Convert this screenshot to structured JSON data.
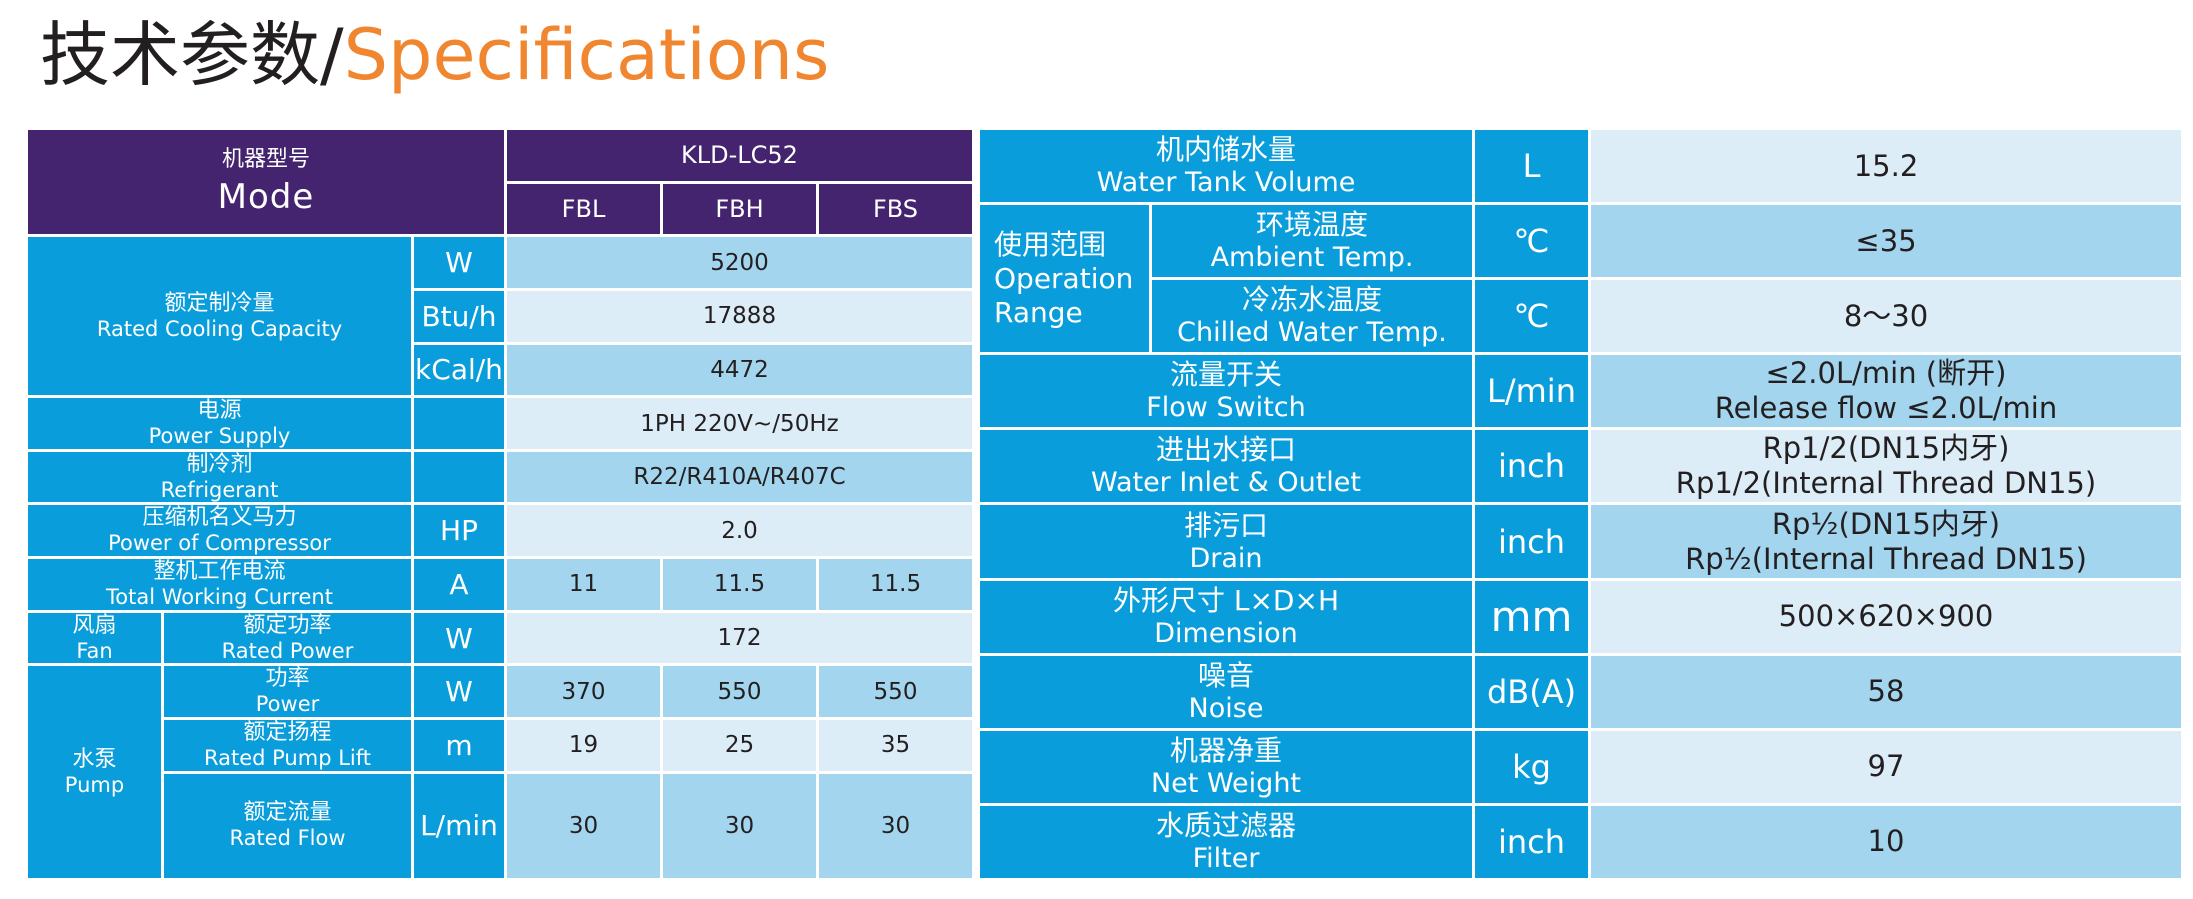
{
  "header": {
    "title_cn": "技术参数/",
    "title_en": "Specifications"
  },
  "left_table": {
    "mode_cn": "机器型号",
    "mode_en": "Mode",
    "model": "KLD-LC52",
    "variants": [
      "FBL",
      "FBH",
      "FBS"
    ],
    "cooling": {
      "cn": "额定制冷量",
      "en": "Rated Cooling Capacity",
      "rows": [
        {
          "unit": "W",
          "value": "5200"
        },
        {
          "unit": "Btu/h",
          "value": "17888"
        },
        {
          "unit": "kCal/h",
          "value": "4472"
        }
      ]
    },
    "power_supply": {
      "cn": "电源",
      "en": "Power Supply",
      "value": "1PH 220V~/50Hz"
    },
    "refrigerant": {
      "cn": "制冷剂",
      "en": "Refrigerant",
      "value": "R22/R410A/R407C"
    },
    "compressor": {
      "cn": "压缩机名义马力",
      "en": "Power of Compressor",
      "unit": "HP",
      "value": "2.0"
    },
    "current": {
      "cn": "整机工作电流",
      "en": "Total Working Current",
      "unit": "A",
      "values": [
        "11",
        "11.5",
        "11.5"
      ]
    },
    "fan": {
      "cn": "风扇",
      "en": "Fan",
      "sub_cn": "额定功率",
      "sub_en": "Rated Power",
      "unit": "W",
      "value": "172"
    },
    "pump": {
      "cn": "水泵",
      "en": "Pump",
      "rows": [
        {
          "cn": "功率",
          "en": "Power",
          "unit": "W",
          "values": [
            "370",
            "550",
            "550"
          ]
        },
        {
          "cn": "额定扬程",
          "en": "Rated Pump Lift",
          "unit": "m",
          "values": [
            "19",
            "25",
            "35"
          ]
        },
        {
          "cn": "额定流量",
          "en": "Rated Flow",
          "unit": "L/min",
          "values": [
            "30",
            "30",
            "30"
          ]
        }
      ]
    }
  },
  "right_table": {
    "tank": {
      "cn": "机内储水量",
      "en": "Water Tank Volume",
      "unit": "L",
      "value": "15.2"
    },
    "range": {
      "cn": "使用范围",
      "en1": "Operation",
      "en2": "Range",
      "ambient": {
        "cn": "环境温度",
        "en": "Ambient Temp.",
        "unit": "℃",
        "value": "≤35"
      },
      "chilled": {
        "cn": "冷冻水温度",
        "en": "Chilled Water Temp.",
        "unit": "℃",
        "value": "8～30"
      }
    },
    "flow_switch": {
      "cn": "流量开关",
      "en": "Flow Switch",
      "unit": "L/min",
      "value1": "≤2.0L/min (断开)",
      "value2": "Release flow ≤2.0L/min"
    },
    "inlet_outlet": {
      "cn": "进出水接口",
      "en": "Water Inlet & Outlet",
      "unit": "inch",
      "value1": "Rp1/2(DN15内牙)",
      "value2": "Rp1/2(Internal Thread DN15)"
    },
    "drain": {
      "cn": "排污口",
      "en": "Drain",
      "unit": "inch",
      "value1": "Rp½(DN15内牙)",
      "value2": "Rp½(Internal Thread DN15)"
    },
    "dimension": {
      "cn": "外形尺寸 L×D×H",
      "en": "Dimension",
      "unit": "mm",
      "value": "500×620×900"
    },
    "noise": {
      "cn": "噪音",
      "en": "Noise",
      "unit": "dB(A)",
      "value": "58"
    },
    "weight": {
      "cn": "机器净重",
      "en": "Net Weight",
      "unit": "kg",
      "value": "97"
    },
    "filter": {
      "cn": "水质过滤器",
      "en": "Filter",
      "unit": "inch",
      "value": "10"
    }
  },
  "colors": {
    "header_purple": "#45246f",
    "cell_blue": "#0a9ddb",
    "value_light": "#a3d6ee",
    "value_lighter": "#dcedf8",
    "title_orange": "#f0862f"
  }
}
